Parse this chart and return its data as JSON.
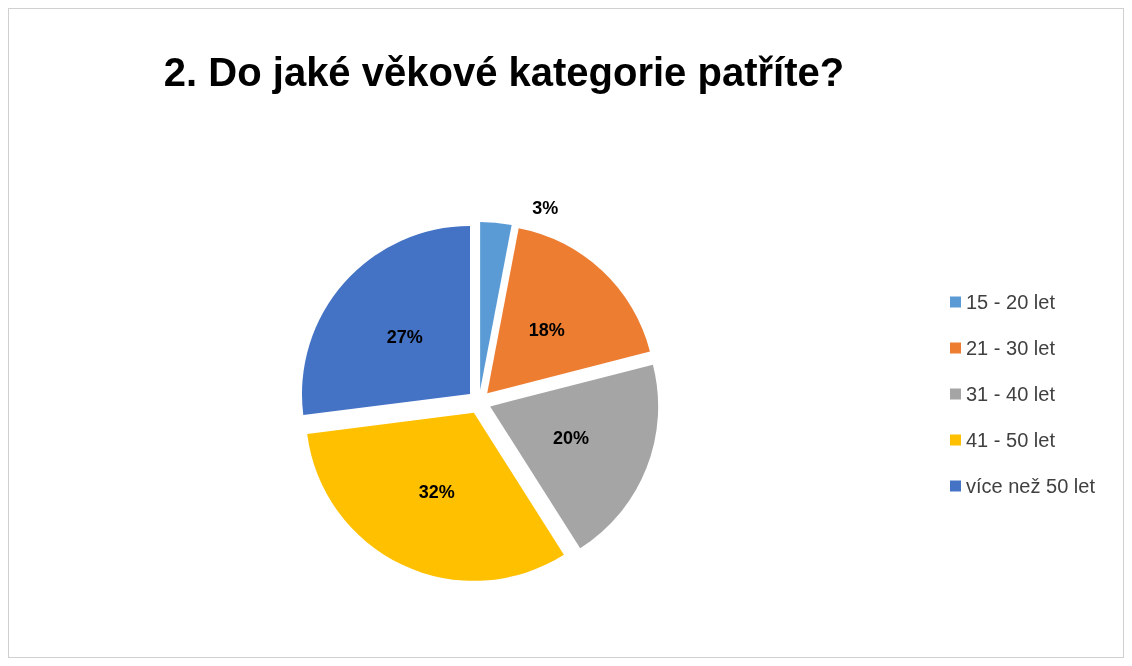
{
  "chart_data": {
    "type": "pie",
    "title": "2. Do jaké věkové kategorie patříte?",
    "categories": [
      "15 - 20 let",
      "21 - 30 let",
      "31 - 40 let",
      "41 - 50 let",
      "více než 50 let"
    ],
    "values": [
      3,
      18,
      20,
      32,
      27
    ],
    "value_labels": [
      "3%",
      "18%",
      "20%",
      "32%",
      "27%"
    ],
    "colors": [
      "#5b9bd5",
      "#ed7d31",
      "#a5a5a5",
      "#ffc000",
      "#4472c4"
    ],
    "legend": "right"
  }
}
